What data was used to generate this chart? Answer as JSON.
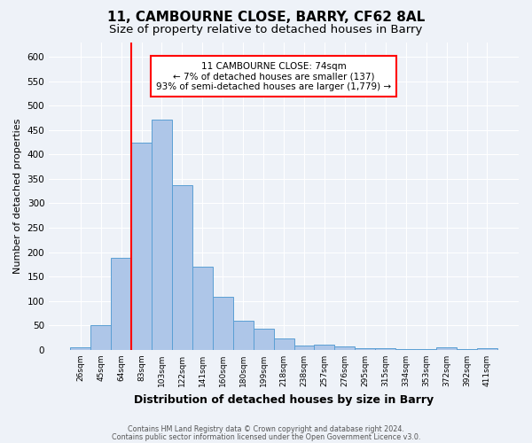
{
  "title1": "11, CAMBOURNE CLOSE, BARRY, CF62 8AL",
  "title2": "Size of property relative to detached houses in Barry",
  "xlabel": "Distribution of detached houses by size in Barry",
  "ylabel": "Number of detached properties",
  "categories": [
    "26sqm",
    "45sqm",
    "64sqm",
    "83sqm",
    "103sqm",
    "122sqm",
    "141sqm",
    "160sqm",
    "180sqm",
    "199sqm",
    "218sqm",
    "238sqm",
    "257sqm",
    "276sqm",
    "295sqm",
    "315sqm",
    "334sqm",
    "353sqm",
    "372sqm",
    "392sqm",
    "411sqm"
  ],
  "values": [
    5,
    51,
    188,
    425,
    472,
    337,
    170,
    108,
    59,
    44,
    23,
    9,
    11,
    7,
    4,
    4,
    2,
    1,
    5,
    1,
    3
  ],
  "bar_color": "#aec6e8",
  "bar_edge_color": "#5a9fd4",
  "vline_color": "red",
  "annotation_text": "11 CAMBOURNE CLOSE: 74sqm\n← 7% of detached houses are smaller (137)\n93% of semi-detached houses are larger (1,779) →",
  "annotation_box_color": "white",
  "annotation_box_edge": "red",
  "ylim": [
    0,
    630
  ],
  "yticks": [
    0,
    50,
    100,
    150,
    200,
    250,
    300,
    350,
    400,
    450,
    500,
    550,
    600
  ],
  "footer1": "Contains HM Land Registry data © Crown copyright and database right 2024.",
  "footer2": "Contains public sector information licensed under the Open Government Licence v3.0.",
  "bg_color": "#eef2f8",
  "plot_bg_color": "#eef2f8",
  "title1_fontsize": 11,
  "title2_fontsize": 9.5,
  "grid_color": "#ffffff"
}
